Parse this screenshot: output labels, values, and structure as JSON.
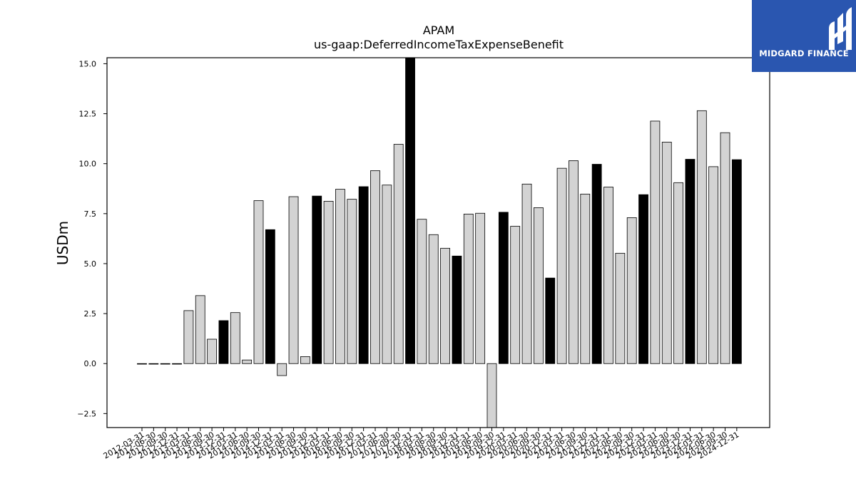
{
  "chart_data": {
    "type": "bar",
    "title": "APAM",
    "subtitle": "us-gaap:DeferredIncomeTaxExpenseBenefit",
    "xlabel": "",
    "ylabel": "USDm",
    "ylim": [
      -3.2,
      15.3
    ],
    "yticks": [
      -2.5,
      0.0,
      2.5,
      5.0,
      7.5,
      10.0,
      12.5,
      15.0
    ],
    "ytick_labels": [
      "−2.5",
      "0.0",
      "2.5",
      "5.0",
      "7.5",
      "10.0",
      "12.5",
      "15.0"
    ],
    "grid": false,
    "colors": {
      "quarter": "#d3d3d3",
      "year_end": "#000000",
      "edge": "#000000"
    },
    "categories": [
      "2012-03-31",
      "2012-06-30",
      "2012-09-30",
      "2012-12-31",
      "2013-03-31",
      "2013-06-30",
      "2013-09-30",
      "2013-12-31",
      "2014-03-31",
      "2014-06-30",
      "2014-09-30",
      "2014-12-31",
      "2015-03-31",
      "2015-06-30",
      "2015-09-30",
      "2015-12-31",
      "2016-03-31",
      "2016-06-30",
      "2016-09-30",
      "2016-12-31",
      "2017-03-31",
      "2017-06-30",
      "2017-09-30",
      "2017-12-31",
      "2018-03-31",
      "2018-06-30",
      "2018-09-30",
      "2018-12-31",
      "2019-03-31",
      "2019-06-30",
      "2019-09-30",
      "2019-12-31",
      "2020-03-31",
      "2020-06-30",
      "2020-09-30",
      "2020-12-31",
      "2021-03-31",
      "2021-06-30",
      "2021-09-30",
      "2021-12-31",
      "2022-03-31",
      "2022-06-30",
      "2022-09-30",
      "2022-12-31",
      "2023-03-31",
      "2023-06-30",
      "2023-09-30",
      "2023-12-31",
      "2024-03-31",
      "2024-06-30",
      "2024-09-30",
      "2024-12-31"
    ],
    "values": [
      0.0,
      0.0,
      0.0,
      0.0,
      2.65,
      3.4,
      1.22,
      2.15,
      2.55,
      0.18,
      8.15,
      6.7,
      -0.6,
      8.35,
      0.35,
      8.38,
      8.12,
      8.72,
      8.22,
      8.85,
      9.65,
      8.93,
      10.97,
      15.3,
      7.22,
      6.45,
      5.77,
      5.38,
      7.48,
      7.52,
      -3.2,
      7.57,
      6.87,
      8.98,
      7.8,
      4.28,
      9.77,
      10.15,
      8.48,
      9.97,
      8.83,
      5.52,
      7.3,
      8.45,
      12.13,
      11.08,
      9.05,
      10.22,
      12.65,
      9.85,
      11.55,
      10.2
    ],
    "year_end": [
      false,
      false,
      false,
      true,
      false,
      false,
      false,
      true,
      false,
      false,
      false,
      true,
      false,
      false,
      false,
      true,
      false,
      false,
      false,
      true,
      false,
      false,
      false,
      true,
      false,
      false,
      false,
      true,
      false,
      false,
      false,
      true,
      false,
      false,
      false,
      true,
      false,
      false,
      false,
      true,
      false,
      false,
      false,
      true,
      false,
      false,
      false,
      true,
      false,
      false,
      false,
      true
    ]
  },
  "logo": {
    "text": "MIDGARD FINANCE",
    "icon": "midgard-logo-icon"
  }
}
